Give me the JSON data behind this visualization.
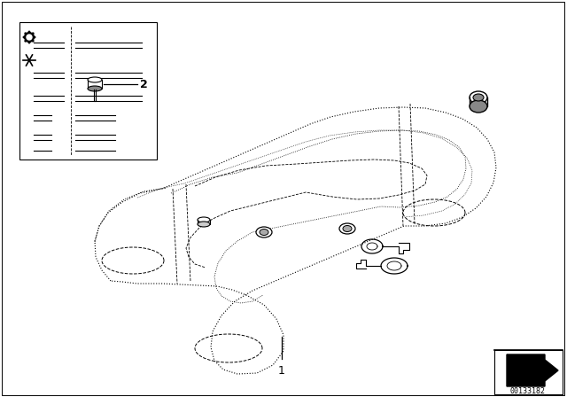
{
  "bg_color": "#ffffff",
  "line_color": "#000000",
  "fig_width": 6.4,
  "fig_height": 4.48,
  "dpi": 100,
  "label1": "1",
  "label2": "2",
  "part_number": "00133182"
}
